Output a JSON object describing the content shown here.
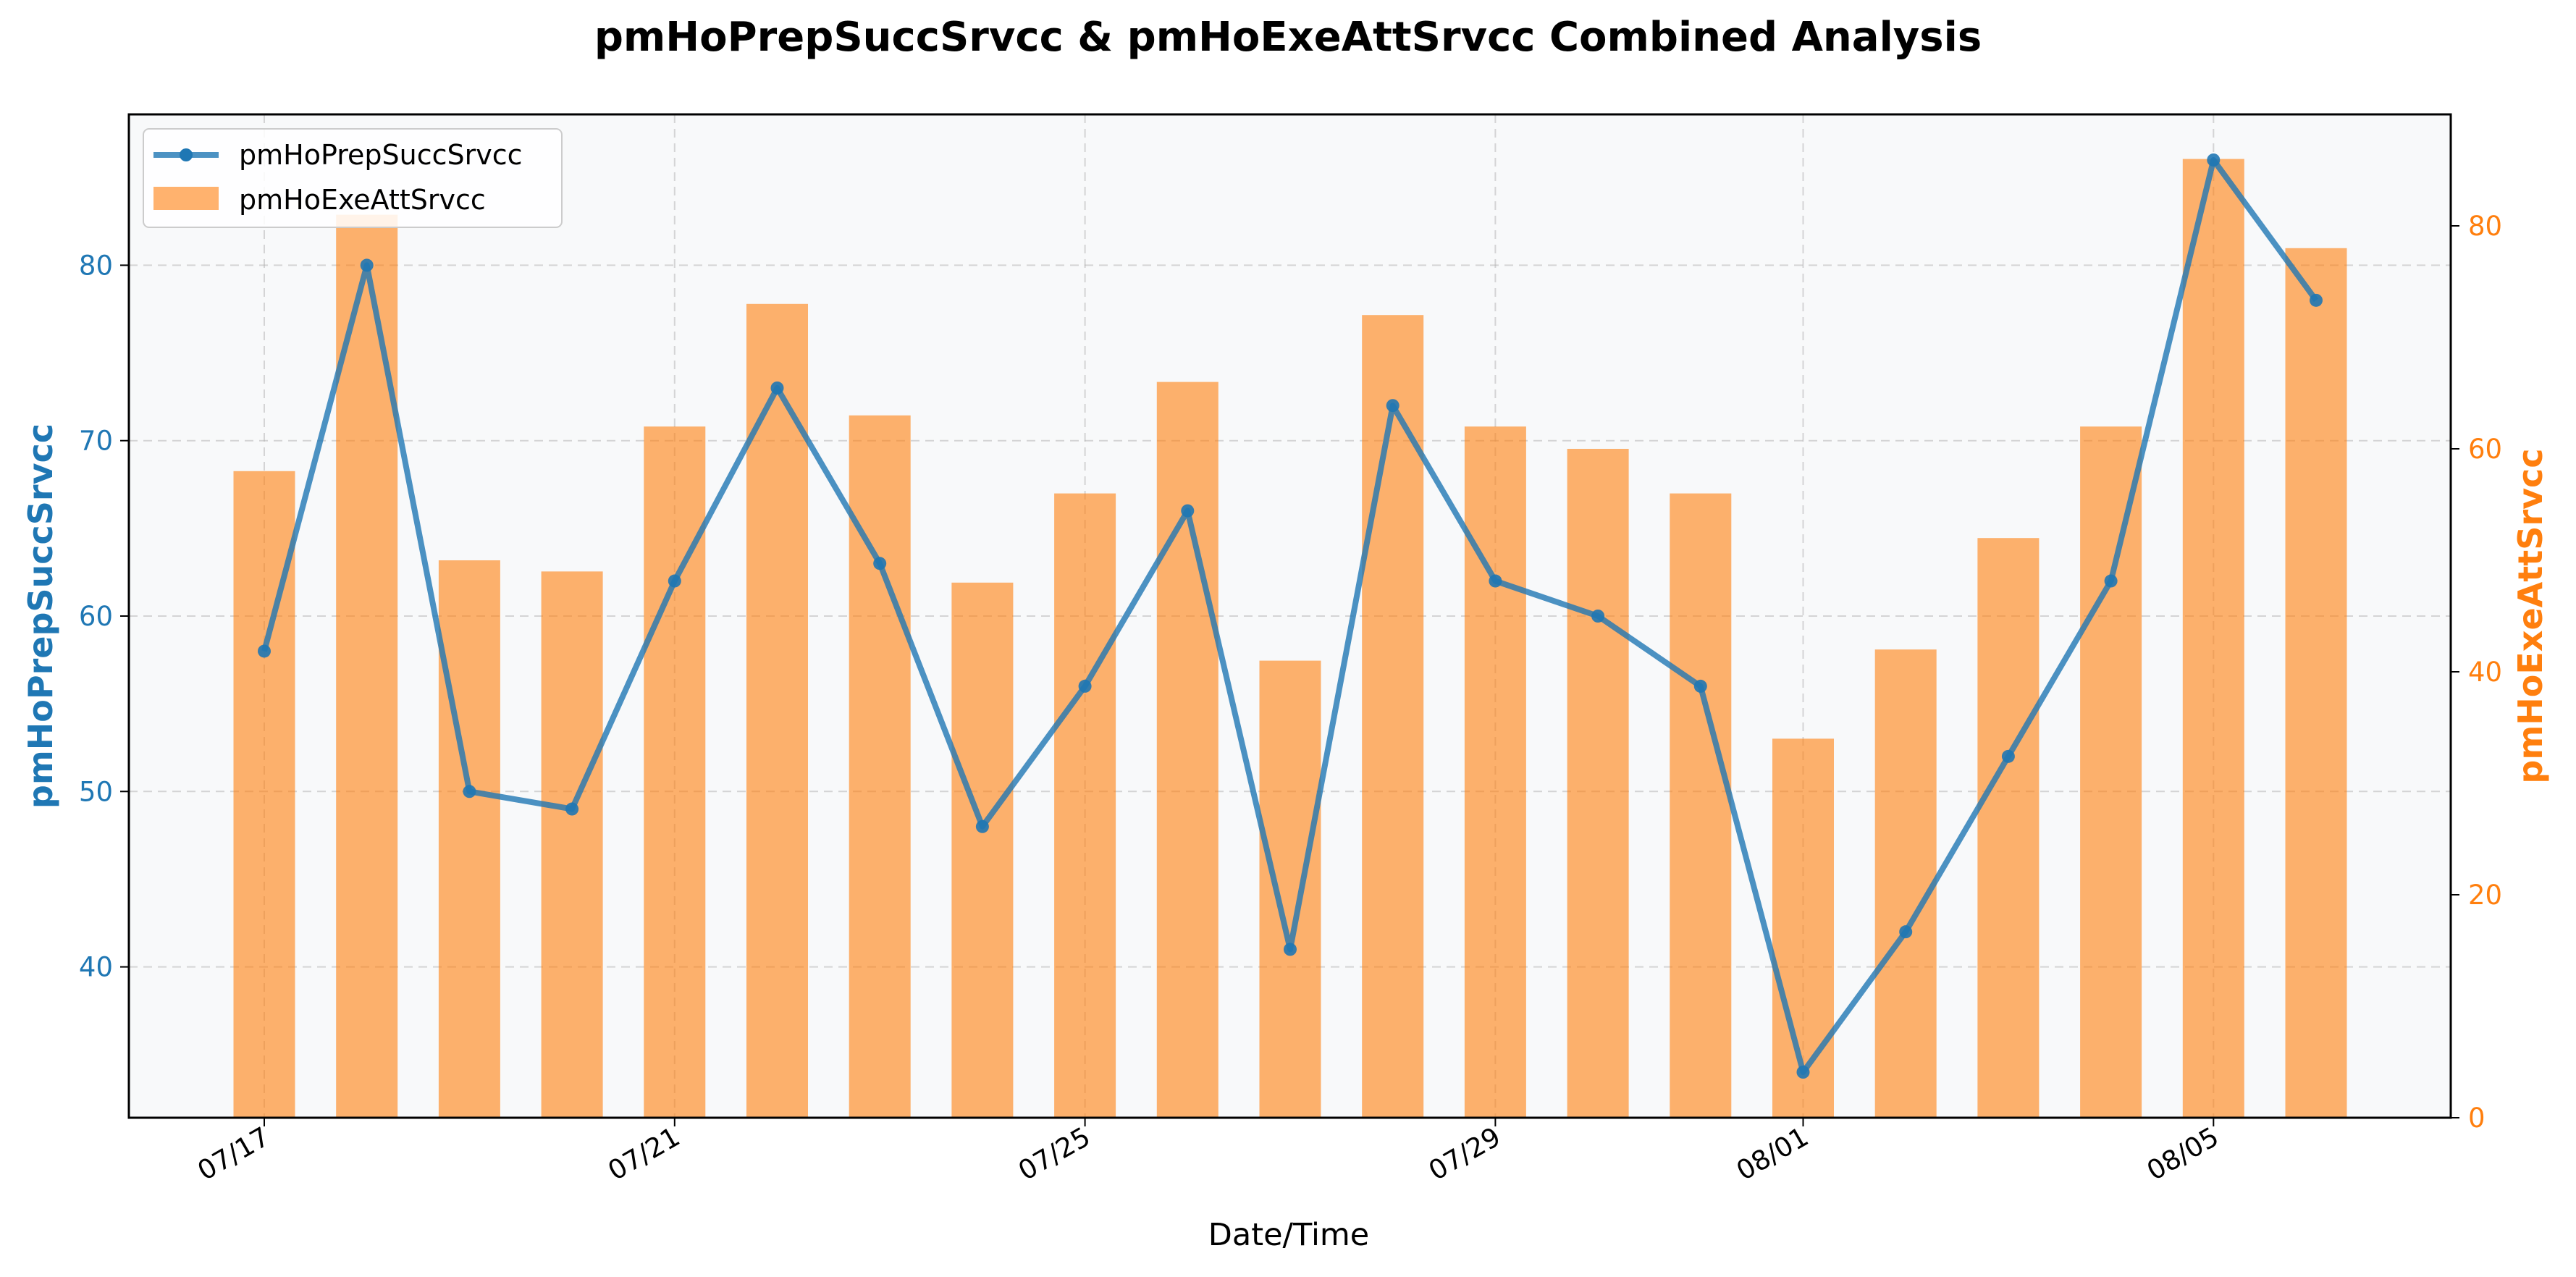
{
  "chart_data": {
    "type": "bar+line",
    "title": "pmHoPrepSuccSrvcc & pmHoExeAttSrvcc Combined Analysis",
    "xlabel": "Date/Time",
    "x": [
      "07/17",
      "07/18",
      "07/19",
      "07/20",
      "07/21",
      "07/22",
      "07/23",
      "07/24",
      "07/25",
      "07/26",
      "07/27",
      "07/28",
      "07/29",
      "07/30",
      "07/31",
      "08/01",
      "08/02",
      "08/03",
      "08/04",
      "08/05",
      "08/06"
    ],
    "x_ticks": [
      "07/17",
      "07/21",
      "07/25",
      "07/29",
      "08/01",
      "08/05"
    ],
    "left_axis": {
      "label": "pmHoPrepSuccSrvcc",
      "ylim": [
        31.4,
        88.6
      ],
      "ticks": [
        40,
        50,
        60,
        70,
        80
      ],
      "color": "#1f77b4"
    },
    "right_axis": {
      "label": "pmHoExeAttSrvcc",
      "ylim": [
        0,
        90
      ],
      "ticks": [
        0,
        20,
        40,
        60,
        80
      ],
      "color": "#ff7f0e"
    },
    "series": [
      {
        "name": "pmHoPrepSuccSrvcc",
        "type": "line",
        "axis": "left",
        "color": "#1f77b4",
        "values": [
          58,
          80,
          50,
          49,
          62,
          73,
          63,
          48,
          56,
          66,
          41,
          72,
          62,
          60,
          56,
          34,
          42,
          52,
          62,
          86,
          78
        ]
      },
      {
        "name": "pmHoExeAttSrvcc",
        "type": "bar",
        "axis": "right",
        "color": "#ff7f0e",
        "values": [
          58,
          81,
          50,
          49,
          62,
          73,
          63,
          48,
          56,
          66,
          41,
          72,
          62,
          60,
          56,
          34,
          42,
          52,
          62,
          86,
          78
        ]
      }
    ],
    "grid": true,
    "legend_position": "top-left"
  }
}
